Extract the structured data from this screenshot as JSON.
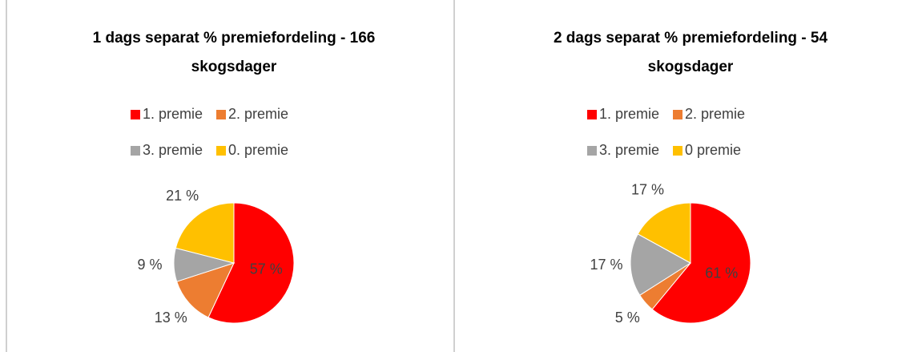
{
  "chart_data": [
    {
      "type": "pie",
      "title": "1 dags separat % premiefordeling - 166 skogsdager",
      "categories": [
        "1. premie",
        "2. premie",
        "3. premie",
        "0. premie"
      ],
      "values": [
        57,
        13,
        9,
        21
      ],
      "value_labels": [
        "57 %",
        "13 %",
        "9 %",
        "21 %"
      ],
      "colors": [
        "#ff0000",
        "#ed7d31",
        "#a5a5a5",
        "#ffc000"
      ]
    },
    {
      "type": "pie",
      "title": "2 dags separat % premiefordeling - 54 skogsdager",
      "categories": [
        "1. premie",
        "2. premie",
        "3. premie",
        "0 premie"
      ],
      "values": [
        61,
        5,
        17,
        17
      ],
      "value_labels": [
        "61 %",
        "5 %",
        "17 %",
        "17 %"
      ],
      "colors": [
        "#ff0000",
        "#ed7d31",
        "#a5a5a5",
        "#ffc000"
      ]
    }
  ]
}
